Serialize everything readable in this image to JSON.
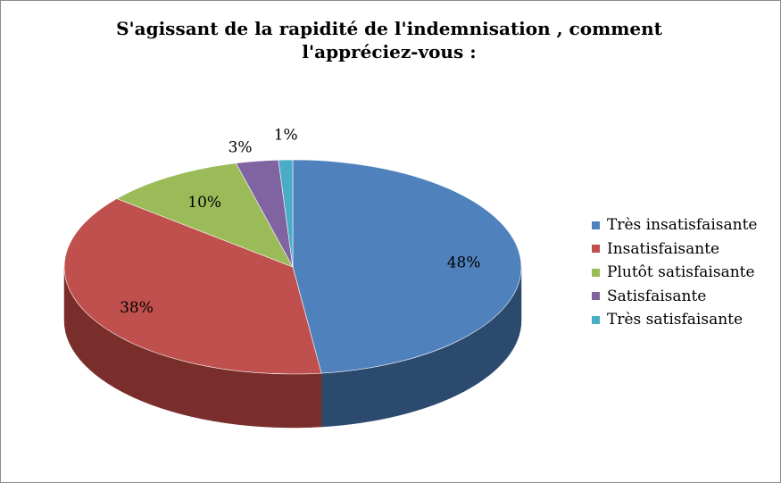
{
  "chart_data": {
    "type": "pie",
    "title_lines": [
      "S'agissant de la rapidité de l'indemnisation , comment",
      "l'appréciez-vous :"
    ],
    "categories": [
      "Très insatisfaisante",
      "Insatisfaisante",
      "Plutôt satisfaisante",
      "Satisfaisante",
      "Très satisfaisante"
    ],
    "values": [
      48,
      38,
      10,
      3,
      1
    ],
    "data_labels": [
      "48%",
      "38%",
      "10%",
      "3%",
      "1%"
    ],
    "colors": [
      "#4f81bd",
      "#c0504d",
      "#9bbb59",
      "#8064a2",
      "#4bacc6"
    ],
    "side_colors": [
      "#2b4a6e",
      "#7a2e2b",
      "#5f7a33",
      "#4e3a68",
      "#2d7388"
    ],
    "legend_position": "right",
    "style": "3d"
  }
}
